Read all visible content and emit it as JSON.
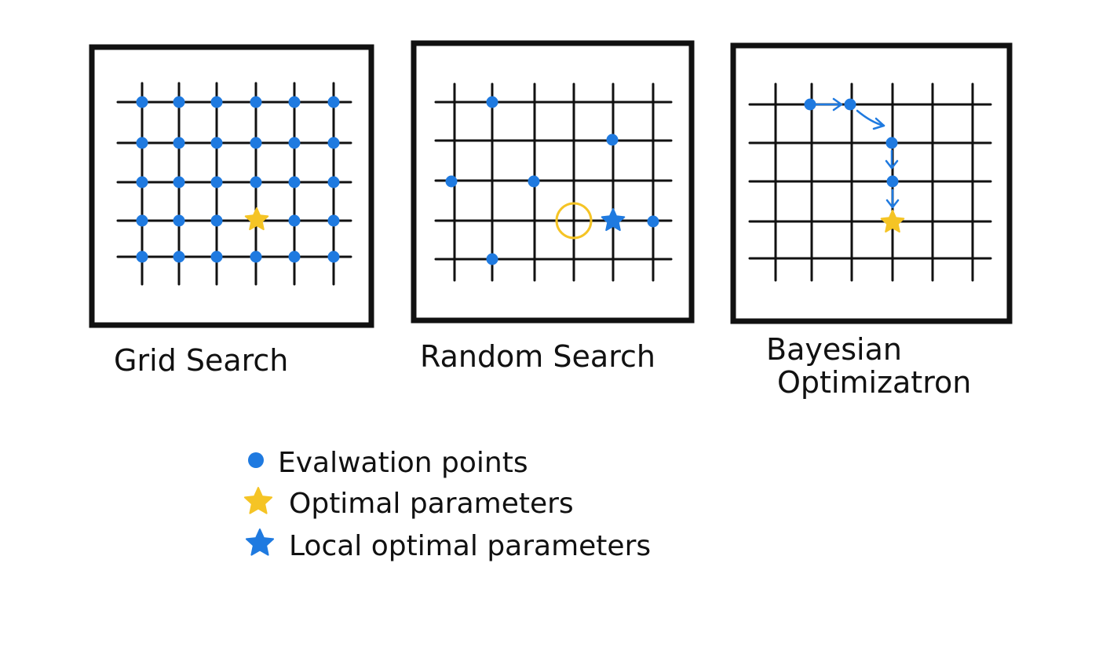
{
  "colors": {
    "background": "#ffffff",
    "ink": "#111111",
    "evaluation": "#1f7ae0",
    "optimal": "#f5c425",
    "local_optimal": "#1f7ae0"
  },
  "panels": [
    {
      "id": "grid-search",
      "title_lines": [
        "Grid Search"
      ]
    },
    {
      "id": "random-search",
      "title_lines": [
        "Random Search"
      ]
    },
    {
      "id": "bayesian-optimization",
      "title_lines": [
        "Bayesian",
        "Optimizatron"
      ]
    }
  ],
  "legend": {
    "items": [
      {
        "marker": "dot",
        "color": "#1f7ae0",
        "label": "Evalwation points"
      },
      {
        "marker": "star",
        "color": "#f5c425",
        "label": "Optimal parameters"
      },
      {
        "marker": "star",
        "color": "#1f7ae0",
        "label": "Local optimal parameters"
      }
    ]
  }
}
